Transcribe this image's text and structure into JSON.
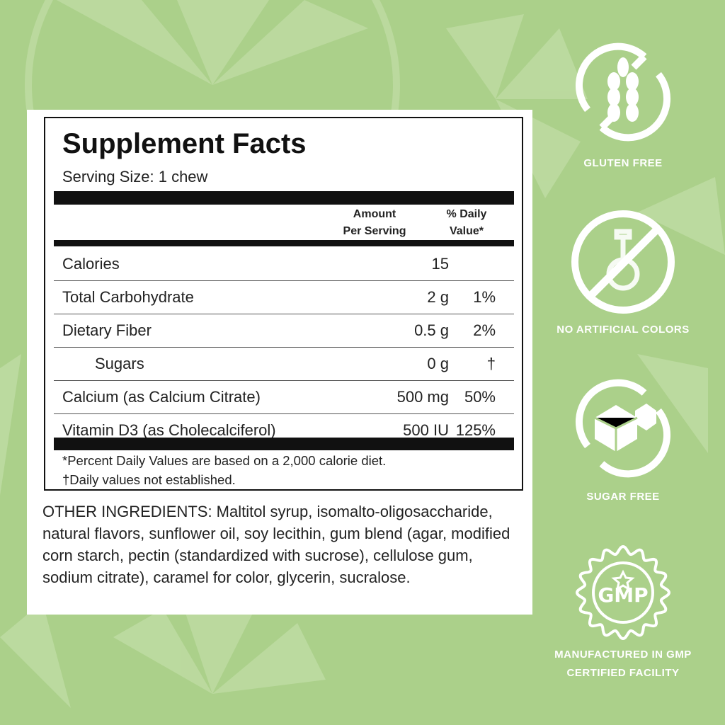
{
  "facts": {
    "title": "Supplement Facts",
    "serving_size": "Serving Size: 1 chew",
    "col_amount": [
      "Amount",
      "Per Serving"
    ],
    "col_dv": [
      "% Daily",
      "Value*"
    ],
    "rows": [
      {
        "name": "Calories",
        "amount": "15",
        "dv": ""
      },
      {
        "name": "Total Carbohydrate",
        "amount": "2 g",
        "dv": "1%"
      },
      {
        "name": "Dietary Fiber",
        "amount": "0.5 g",
        "dv": "2%"
      },
      {
        "name": "Sugars",
        "amount": "0 g",
        "dv": "†"
      },
      {
        "name": "Calcium (as Calcium Citrate)",
        "amount": "500 mg",
        "dv": "50%"
      },
      {
        "name": "Vitamin D3 (as Cholecalciferol)",
        "amount": "500 IU",
        "dv": "125%"
      }
    ],
    "footnote1": "*Percent Daily Values are based on a 2,000 calorie diet.",
    "footnote2": "†Daily values not established."
  },
  "ingredients": "OTHER INGREDIENTS: Maltitol syrup, isomalto-oligosaccharide, natural flavors, sunflower oil, soy lecithin, gum blend (agar, modified corn starch, pectin (standardized with sucrose), cellulose gum, sodium citrate), caramel for color, glycerin, sucralose.",
  "badges": [
    {
      "icon": "gluten-free-icon",
      "label": "GLUTEN FREE"
    },
    {
      "icon": "no-artificial-colors-icon",
      "label": "NO ARTIFICIAL COLORS"
    },
    {
      "icon": "sugar-free-icon",
      "label": "SUGAR FREE"
    },
    {
      "icon": "gmp-seal-icon",
      "label": "MANUFACTURED IN GMP",
      "label2": "CERTIFIED FACILITY",
      "seal_text": "GMP"
    }
  ],
  "colors": {
    "background": "#abd08a",
    "slice": "#c0dea6",
    "text": "#111111"
  }
}
